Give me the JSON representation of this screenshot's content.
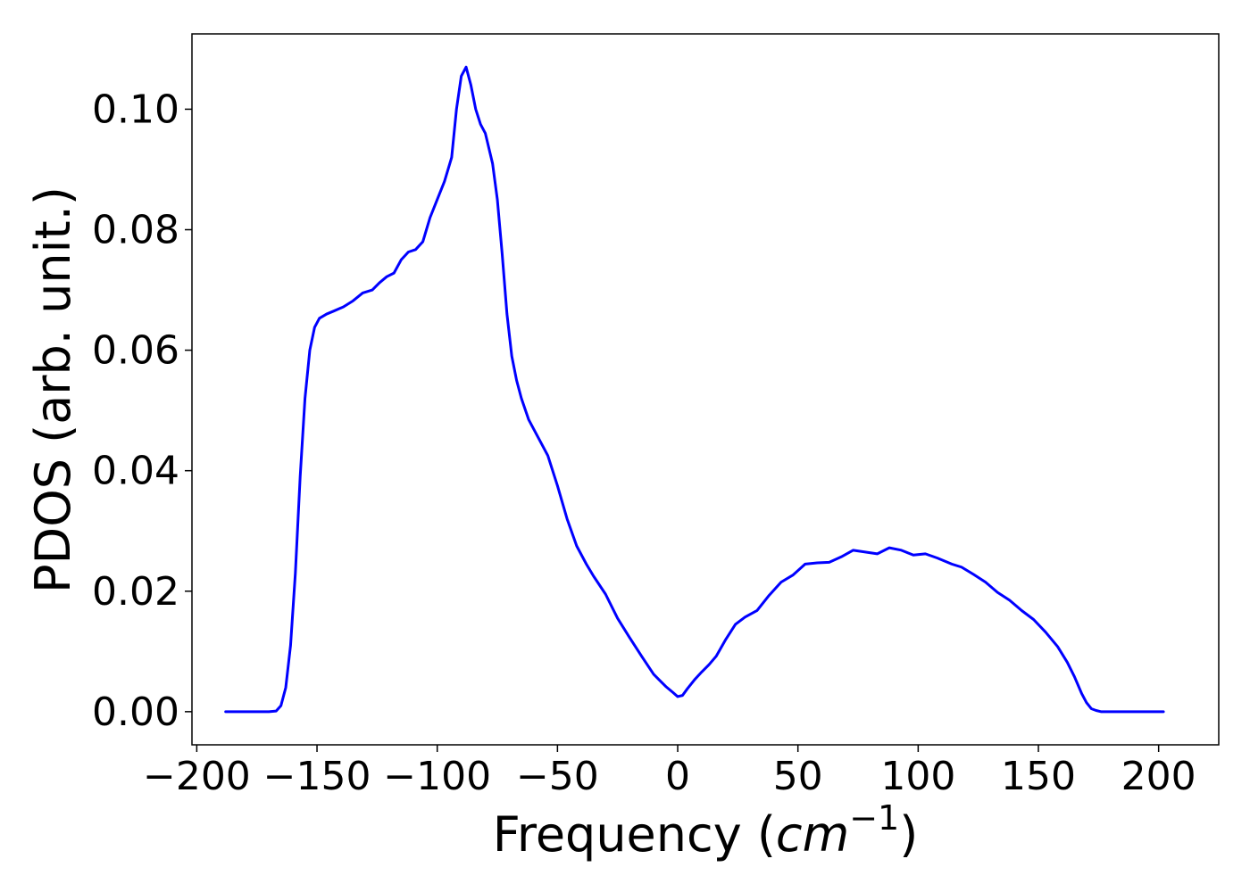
{
  "chart_data": {
    "type": "line",
    "xlabel": "Frequency (",
    "xlabel_unit_base": "cm",
    "xlabel_unit_exp": "−1",
    "xlabel_close": ")",
    "ylabel": "PDOS (arb. unit.)",
    "xlim": [
      -202,
      225
    ],
    "ylim": [
      -0.0055,
      0.1125
    ],
    "xticks": [
      -200,
      -150,
      -100,
      -50,
      0,
      50,
      100,
      150,
      200
    ],
    "xtick_labels": [
      "−200",
      "−150",
      "−100",
      "−50",
      "0",
      "50",
      "100",
      "150",
      "200"
    ],
    "yticks": [
      0.0,
      0.02,
      0.04,
      0.06,
      0.08,
      0.1
    ],
    "ytick_labels": [
      "0.00",
      "0.02",
      "0.04",
      "0.06",
      "0.08",
      "0.10"
    ],
    "grid": false,
    "series": [
      {
        "color": "#0000ff",
        "x": [
          -188,
          -180,
          -170,
          -167,
          -165,
          -163,
          -161,
          -159,
          -157,
          -155,
          -153,
          -151,
          -149,
          -146,
          -143,
          -139,
          -135,
          -131,
          -127,
          -124,
          -121,
          -118,
          -115,
          -112,
          -109,
          -106,
          -103,
          -100,
          -97,
          -94,
          -92,
          -90,
          -88,
          -86,
          -84,
          -82,
          -80,
          -77,
          -75,
          -73,
          -71,
          -69,
          -67,
          -65,
          -62,
          -58,
          -54,
          -50,
          -46,
          -42,
          -38,
          -35,
          -30,
          -25,
          -20,
          -15,
          -10,
          -5,
          -2,
          0,
          2,
          4,
          7,
          10,
          13,
          16,
          20,
          24,
          28,
          33,
          38,
          43,
          48,
          53,
          58,
          63,
          68,
          73,
          78,
          83,
          88,
          93,
          98,
          103,
          108,
          114,
          118,
          123,
          128,
          133,
          138,
          143,
          148,
          153,
          158,
          162,
          165,
          168,
          170,
          172,
          174,
          176,
          180,
          190,
          202
        ],
        "y": [
          0,
          0,
          0,
          0.0001,
          0.001,
          0.004,
          0.011,
          0.023,
          0.039,
          0.052,
          0.06,
          0.0638,
          0.0653,
          0.066,
          0.0665,
          0.0672,
          0.0682,
          0.0695,
          0.07,
          0.0712,
          0.0722,
          0.0728,
          0.075,
          0.0763,
          0.0767,
          0.078,
          0.082,
          0.085,
          0.088,
          0.092,
          0.1,
          0.1055,
          0.107,
          0.104,
          0.1,
          0.0975,
          0.096,
          0.091,
          0.085,
          0.076,
          0.066,
          0.059,
          0.055,
          0.052,
          0.0485,
          0.0455,
          0.0425,
          0.0375,
          0.032,
          0.0275,
          0.0245,
          0.0225,
          0.0195,
          0.0155,
          0.0123,
          0.0092,
          0.0062,
          0.0042,
          0.0032,
          0.0025,
          0.0027,
          0.0038,
          0.0053,
          0.0066,
          0.0078,
          0.0092,
          0.012,
          0.0145,
          0.0157,
          0.0168,
          0.0193,
          0.0215,
          0.0227,
          0.0245,
          0.0247,
          0.0248,
          0.0257,
          0.0268,
          0.0265,
          0.0262,
          0.0272,
          0.0268,
          0.026,
          0.0262,
          0.0255,
          0.0245,
          0.024,
          0.0228,
          0.0215,
          0.0198,
          0.0185,
          0.0168,
          0.0153,
          0.0132,
          0.0108,
          0.0082,
          0.0058,
          0.003,
          0.0015,
          0.0005,
          0.0002,
          0,
          0,
          0,
          0
        ]
      }
    ]
  }
}
